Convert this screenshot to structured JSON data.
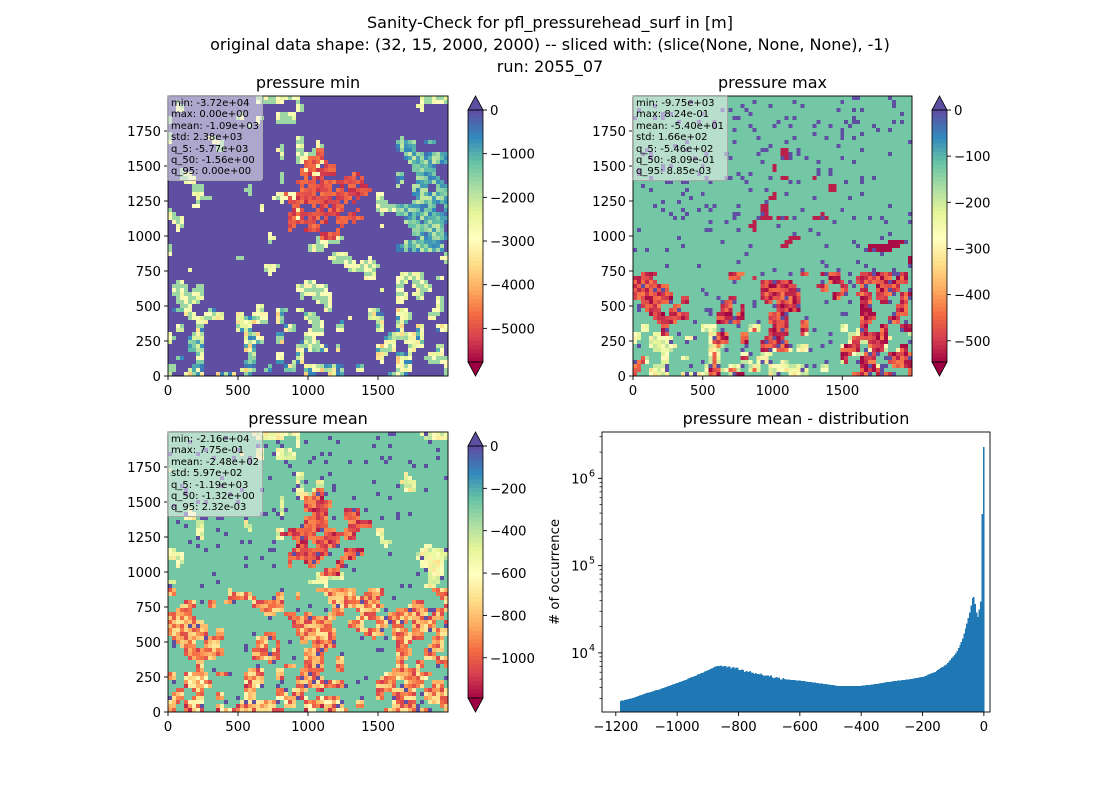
{
  "suptitle": {
    "line1": "Sanity-Check for pfl_pressurehead_surf in [m]",
    "line2": "original data shape: (32, 15, 2000, 2000) -- sliced with: (slice(None, None, None), -1)",
    "line3": "run: 2055_07"
  },
  "panels": [
    {
      "title": "pressure min",
      "stats": [
        "min: -3.72e+04",
        "max: 0.00e+00",
        "mean: -1.09e+03",
        "std: 2.38e+03",
        "q_5: -5.77e+03",
        "q_50: -1.56e+00",
        "q_95: 0.00e+00"
      ],
      "colorbar": {
        "ticks": [
          0,
          -1000,
          -2000,
          -3000,
          -4000,
          -5000
        ],
        "tick_labels": [
          "0",
          "−1000",
          "−2000",
          "−3000",
          "−4000",
          "−5000"
        ],
        "vmin": -5770,
        "vmax": 0,
        "extend": "both"
      },
      "x_ticks": [
        "0",
        "500",
        "1000",
        "1500"
      ],
      "y_ticks": [
        "0",
        "250",
        "500",
        "750",
        "1000",
        "1250",
        "1500",
        "1750"
      ]
    },
    {
      "title": "pressure max",
      "stats": [
        "min: -9.75e+03",
        "max: 8.24e-01",
        "mean: -5.40e+01",
        "std: 1.66e+02",
        "q_5: -5.46e+02",
        "q_50: -8.09e-01",
        "q_95: 8.85e-03"
      ],
      "colorbar": {
        "ticks": [
          0,
          -100,
          -200,
          -300,
          -400,
          -500
        ],
        "tick_labels": [
          "0",
          "−100",
          "−200",
          "−300",
          "−400",
          "−500"
        ],
        "vmin": -546,
        "vmax": 0.00885,
        "extend": "both"
      },
      "x_ticks": [
        "0",
        "500",
        "1000",
        "1500"
      ],
      "y_ticks": [
        "0",
        "250",
        "500",
        "750",
        "1000",
        "1250",
        "1500",
        "1750"
      ]
    },
    {
      "title": "pressure mean",
      "stats": [
        "min: -2.16e+04",
        "max: 7.75e-01",
        "mean: -2.48e+02",
        "std: 5.97e+02",
        "q_5: -1.19e+03",
        "q_50: -1.32e+00",
        "q_95: 2.32e-03"
      ],
      "colorbar": {
        "ticks": [
          0,
          -200,
          -400,
          -600,
          -800,
          -1000
        ],
        "tick_labels": [
          "0",
          "−200",
          "−400",
          "−600",
          "−800",
          "−1000"
        ],
        "vmin": -1190,
        "vmax": 0.00232,
        "extend": "both"
      },
      "x_ticks": [
        "0",
        "500",
        "1000",
        "1500"
      ],
      "y_ticks": [
        "0",
        "250",
        "500",
        "750",
        "1000",
        "1250",
        "1500",
        "1750"
      ]
    }
  ],
  "chart_data": {
    "type": "bar",
    "title": "pressure mean - distribution",
    "xlabel": "",
    "ylabel": "# of occurrence",
    "yscale": "log",
    "x_ticks": [
      -1200,
      -1000,
      -800,
      -600,
      -400,
      -200,
      0
    ],
    "x_tick_labels": [
      "−1200",
      "−1000",
      "−800",
      "−600",
      "−400",
      "−200",
      "0"
    ],
    "y_ticks": [
      10000,
      100000,
      1000000
    ],
    "y_tick_labels": [
      "10",
      "10",
      "10"
    ],
    "y_tick_exponents": [
      "4",
      "5",
      "6"
    ],
    "xlim": [
      -1245,
      20
    ],
    "ylim": [
      2100,
      3400000
    ],
    "bar_color": "#1f77b4",
    "anchors": [
      [
        -1187,
        2800
      ],
      [
        -1150,
        3000
      ],
      [
        -1100,
        3450
      ],
      [
        -1050,
        3900
      ],
      [
        -1000,
        4500
      ],
      [
        -950,
        5300
      ],
      [
        -900,
        6300
      ],
      [
        -870,
        7100
      ],
      [
        -850,
        7000
      ],
      [
        -830,
        6900
      ],
      [
        -800,
        6500
      ],
      [
        -760,
        6000
      ],
      [
        -720,
        5600
      ],
      [
        -680,
        5200
      ],
      [
        -640,
        4950
      ],
      [
        -600,
        4800
      ],
      [
        -560,
        4600
      ],
      [
        -520,
        4400
      ],
      [
        -480,
        4200
      ],
      [
        -440,
        4150
      ],
      [
        -400,
        4200
      ],
      [
        -360,
        4350
      ],
      [
        -320,
        4600
      ],
      [
        -280,
        4800
      ],
      [
        -240,
        5000
      ],
      [
        -200,
        5300
      ],
      [
        -160,
        6000
      ],
      [
        -120,
        7500
      ],
      [
        -90,
        10000
      ],
      [
        -70,
        14000
      ],
      [
        -55,
        22000
      ],
      [
        -45,
        30000
      ],
      [
        -35,
        47000
      ],
      [
        -30,
        40000
      ],
      [
        -25,
        30000
      ],
      [
        -18,
        25000
      ],
      [
        -12,
        38000
      ],
      [
        -8,
        40000
      ],
      [
        -4,
        2300000
      ],
      [
        0,
        40000
      ]
    ]
  }
}
